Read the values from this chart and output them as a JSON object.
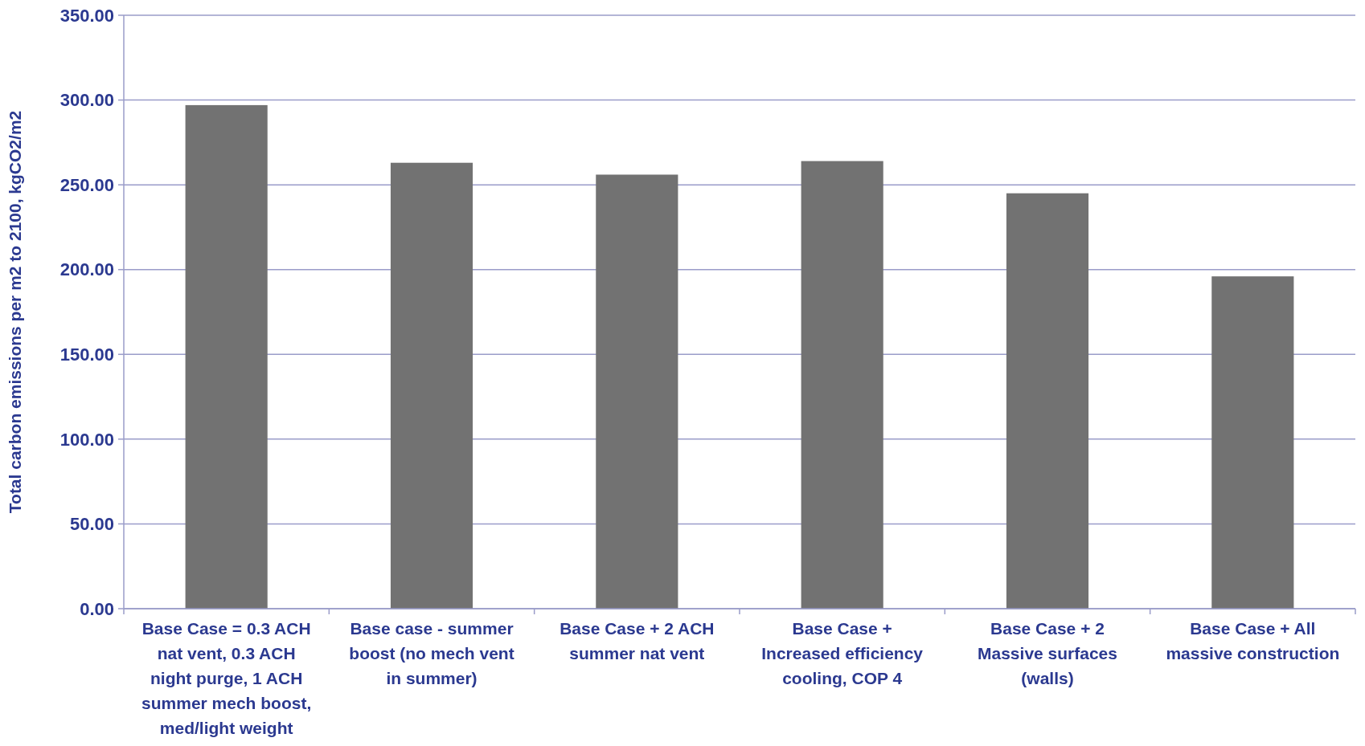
{
  "chart_data": {
    "type": "bar",
    "categories": [
      "Base Case = 0.3 ACH nat vent, 0.3 ACH night purge, 1 ACH summer mech boost, med/light weight",
      "Base case - summer boost (no mech vent in summer)",
      "Base Case + 2 ACH summer nat vent",
      "Base Case + Increased efficiency cooling, COP 4",
      "Base Case + 2 Massive surfaces (walls)",
      "Base Case + All massive construction"
    ],
    "values": [
      297,
      263,
      256,
      264,
      245,
      196
    ],
    "color": "#727272",
    "ylabel": "Total carbon emissions per m2 to 2100, kgCO2/m2",
    "ylim": [
      0,
      350
    ],
    "yticks": [
      {
        "value": 0,
        "label": "0.00"
      },
      {
        "value": 50,
        "label": "50.00"
      },
      {
        "value": 100,
        "label": "100.00"
      },
      {
        "value": 150,
        "label": "150.00"
      },
      {
        "value": 200,
        "label": "200.00"
      },
      {
        "value": 250,
        "label": "250.00"
      },
      {
        "value": 300,
        "label": "300.00"
      },
      {
        "value": 350,
        "label": "350.00"
      }
    ],
    "grid": "y"
  }
}
